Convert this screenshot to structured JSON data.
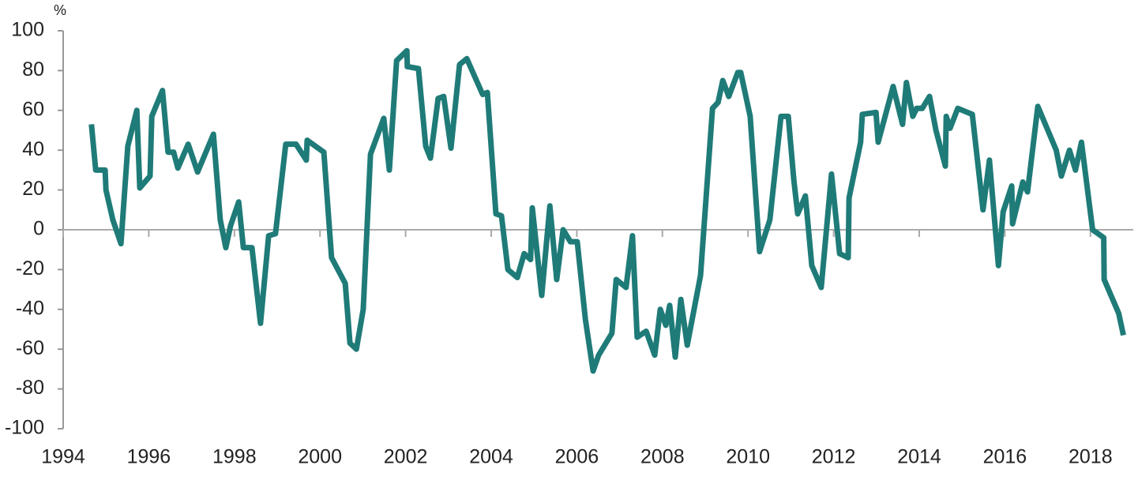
{
  "chart_data": {
    "type": "line",
    "y_unit_label": "%",
    "x": [
      1994.66,
      1994.76,
      1994.98,
      1995.0,
      1995.16,
      1995.35,
      1995.51,
      1995.72,
      1995.79,
      1996.03,
      1996.07,
      1996.32,
      1996.45,
      1996.58,
      1996.68,
      1996.92,
      1997.14,
      1997.51,
      1997.67,
      1997.8,
      1997.91,
      1998.1,
      1998.21,
      1998.41,
      1998.61,
      1998.8,
      1998.96,
      1999.2,
      1999.44,
      1999.68,
      1999.7,
      2000.09,
      2000.27,
      2000.59,
      2000.7,
      2000.85,
      2001.01,
      2001.18,
      2001.49,
      2001.62,
      2001.79,
      2002.03,
      2002.04,
      2002.3,
      2002.47,
      2002.58,
      2002.76,
      2002.89,
      2003.06,
      2003.26,
      2003.43,
      2003.8,
      2003.91,
      2004.11,
      2004.24,
      2004.39,
      2004.61,
      2004.77,
      2004.92,
      2004.96,
      2005.18,
      2005.37,
      2005.53,
      2005.68,
      2005.85,
      2006.01,
      2006.2,
      2006.38,
      2006.51,
      2006.82,
      2006.92,
      2007.15,
      2007.3,
      2007.41,
      2007.62,
      2007.82,
      2007.95,
      2008.08,
      2008.17,
      2008.3,
      2008.43,
      2008.58,
      2008.89,
      2009.17,
      2009.3,
      2009.41,
      2009.55,
      2009.76,
      2009.83,
      2010.05,
      2010.27,
      2010.51,
      2010.77,
      2010.94,
      2011.07,
      2011.16,
      2011.34,
      2011.49,
      2011.71,
      2011.95,
      2012.14,
      2012.34,
      2012.36,
      2012.63,
      2012.67,
      2012.99,
      2013.04,
      2013.39,
      2013.61,
      2013.7,
      2013.85,
      2013.94,
      2014.07,
      2014.24,
      2014.39,
      2014.61,
      2014.63,
      2014.72,
      2014.9,
      2015.24,
      2015.49,
      2015.64,
      2015.85,
      2015.96,
      2016.16,
      2016.18,
      2016.42,
      2016.53,
      2016.77,
      2017.2,
      2017.32,
      2017.51,
      2017.65,
      2017.79,
      2018.05,
      2018.31,
      2018.32,
      2018.66,
      2018.77
    ],
    "series": [
      {
        "color": "#1f7b78",
        "values": [
          53,
          30,
          30,
          20,
          5,
          -7,
          42,
          60,
          21,
          27,
          57,
          70,
          39,
          39,
          31,
          43,
          29,
          48,
          5,
          -9,
          2,
          14,
          -9,
          -9,
          -47,
          -3,
          -2,
          43,
          43,
          35,
          45,
          39,
          -14,
          -27,
          -57,
          -60,
          -40,
          38,
          56,
          30,
          85,
          90,
          82,
          81,
          42,
          36,
          66,
          67,
          41,
          83,
          86,
          68,
          69,
          8,
          7,
          -20,
          -24,
          -12,
          -15,
          11,
          -33,
          12,
          -25,
          0,
          -6,
          -6,
          -45,
          -71,
          -63,
          -52,
          -25,
          -29,
          -3,
          -54,
          -51,
          -63,
          -40,
          -48,
          -38,
          -64,
          -35,
          -58,
          -23,
          61,
          64,
          75,
          67,
          79,
          79,
          57,
          -11,
          5,
          57,
          57,
          25,
          8,
          17,
          -18,
          -29,
          28,
          -12,
          -14,
          16,
          44,
          58,
          59,
          44,
          72,
          53,
          74,
          57,
          61,
          61,
          67,
          50,
          32,
          57,
          51,
          61,
          58,
          10,
          35,
          -18,
          9,
          22,
          3,
          24,
          19,
          62,
          40,
          27,
          40,
          30,
          44,
          0,
          -4,
          -25,
          -42,
          -53
        ]
      }
    ],
    "xlim": [
      1994,
      2019
    ],
    "xticks": [
      1994,
      1996,
      1998,
      2000,
      2002,
      2004,
      2006,
      2008,
      2010,
      2012,
      2014,
      2016,
      2018
    ],
    "ylim": [
      -100,
      100
    ],
    "yticks": [
      -100,
      -80,
      -60,
      -40,
      -20,
      0,
      20,
      40,
      60,
      80,
      100
    ]
  }
}
